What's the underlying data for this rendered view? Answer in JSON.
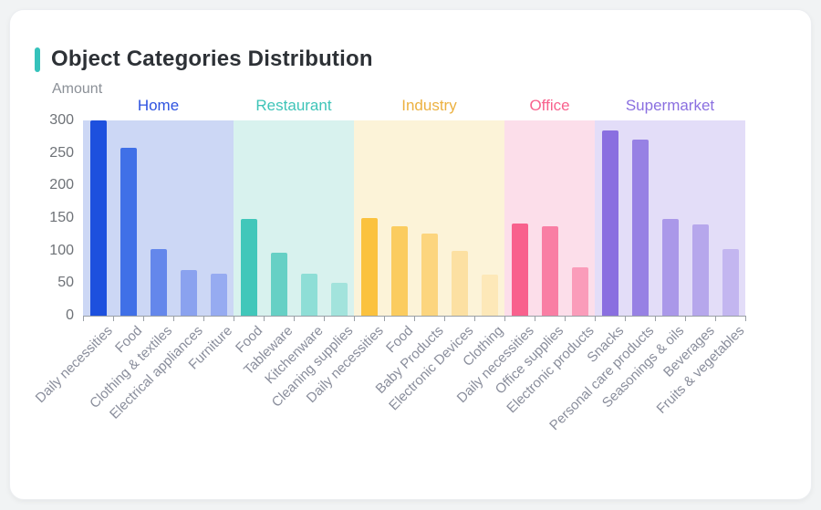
{
  "card": {
    "title": "Object Categories Distribution",
    "accent_color": "#35c2bb"
  },
  "chart_data": {
    "type": "bar",
    "title": "Object Categories Distribution",
    "xlabel": "",
    "ylabel": "Amount",
    "ylim": [
      0,
      300
    ],
    "y_ticks": [
      300,
      250,
      200,
      150,
      100,
      50,
      0
    ],
    "grid": false,
    "legend_position": "top-inline-group-headers",
    "axis_color": "#9aa0a6",
    "y_tick_label_color": "#6e7277",
    "x_tick_label_color": "#8a8e9c",
    "groups": [
      {
        "name": "Home",
        "label_color": "#2d52e0",
        "band_color": "#ccd7f5",
        "categories": [
          "Daily necessities",
          "Food",
          "Clothing & textiles",
          "Electrical appliances",
          "Furniture"
        ],
        "values": [
          300,
          258,
          102,
          70,
          64
        ],
        "bar_colors": [
          "#1d50de",
          "#4070e7",
          "#6487eb",
          "#8aa2ef",
          "#96abf1"
        ]
      },
      {
        "name": "Restaurant",
        "label_color": "#3ec4b8",
        "band_color": "#d8f2ee",
        "categories": [
          "Food",
          "Tableware",
          "Kitchenware",
          "Cleaning supplies"
        ],
        "values": [
          148,
          97,
          65,
          50
        ],
        "bar_colors": [
          "#41c7ba",
          "#66d0c5",
          "#8eded6",
          "#a2e3dc"
        ]
      },
      {
        "name": "Industry",
        "label_color": "#ecb140",
        "band_color": "#fcf3d8",
        "categories": [
          "Daily necessities",
          "Food",
          "Baby Products",
          "Electronic Devices",
          "Clothing"
        ],
        "values": [
          150,
          138,
          126,
          99,
          63
        ],
        "bar_colors": [
          "#fbc23e",
          "#fbcc5f",
          "#fcd57e",
          "#fce0a2",
          "#fde8b8"
        ]
      },
      {
        "name": "Office",
        "label_color": "#f8618d",
        "band_color": "#fcdeea",
        "categories": [
          "Daily necessities",
          "Office supplies",
          "Electronic products"
        ],
        "values": [
          142,
          138,
          75
        ],
        "bar_colors": [
          "#f8618d",
          "#f97ea4",
          "#fa9cba"
        ]
      },
      {
        "name": "Supermarket",
        "label_color": "#8a6fe0",
        "band_color": "#e3ddf8",
        "categories": [
          "Snacks",
          "Personal care products",
          "Seasonings & oils",
          "Beverages",
          "Fruits & vegetables"
        ],
        "values": [
          285,
          271,
          148,
          140,
          102
        ],
        "bar_colors": [
          "#8a6fe0",
          "#9781e4",
          "#aa98e9",
          "#b6a7ec",
          "#c3b6f0"
        ]
      }
    ]
  }
}
